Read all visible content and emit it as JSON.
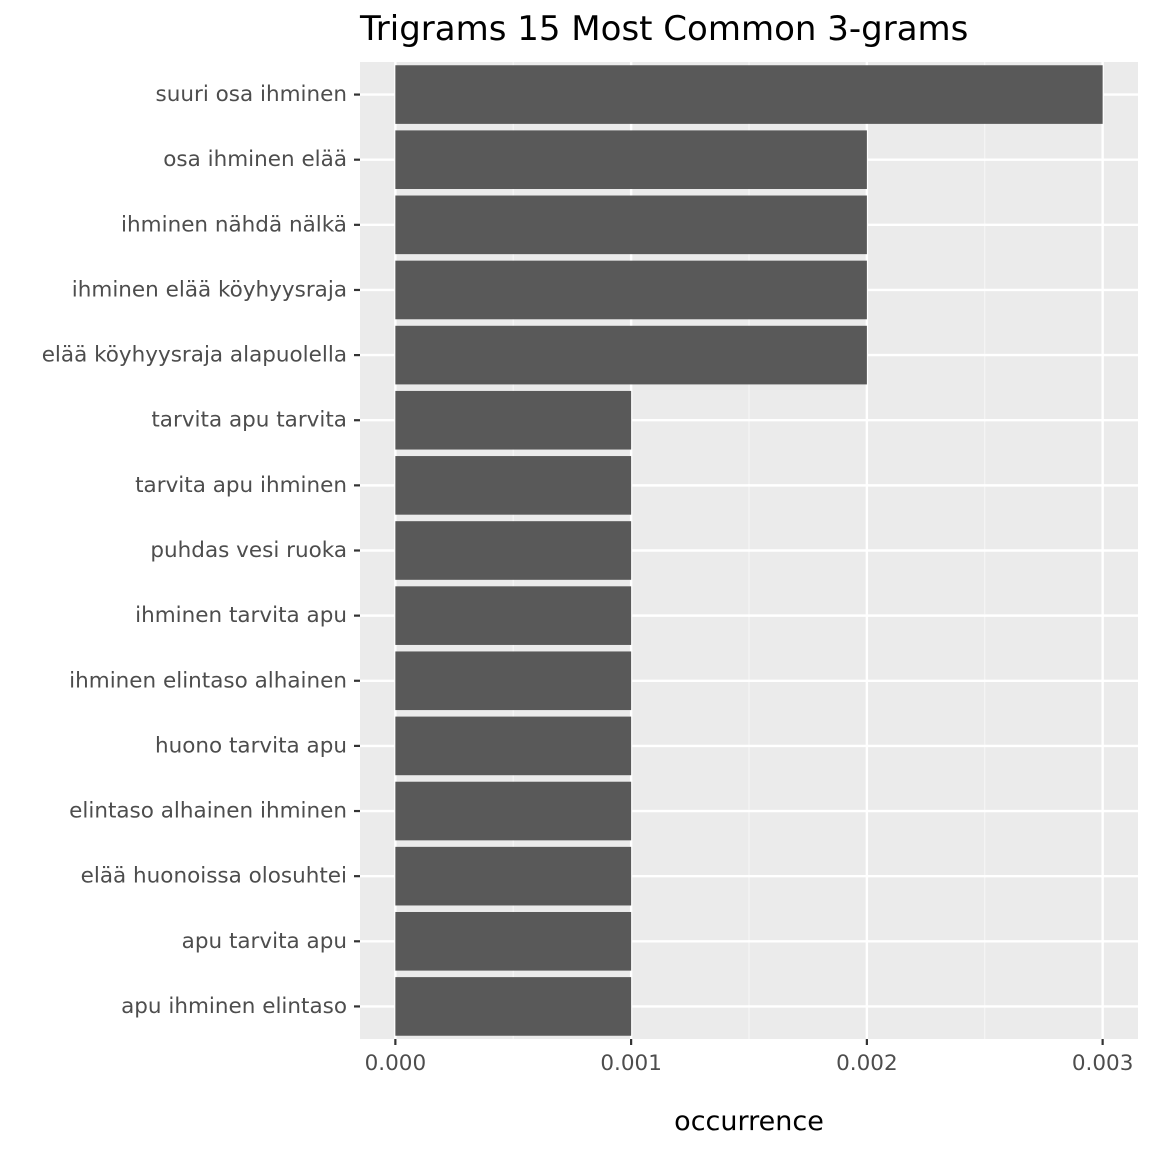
{
  "chart_data": {
    "type": "bar",
    "orientation": "horizontal",
    "title": "Trigrams 15 Most Common 3-grams",
    "xlabel": "occurrence",
    "ylabel": "",
    "categories": [
      "suuri osa ihminen",
      "osa ihminen elää",
      "ihminen nähdä nälkä",
      "ihminen elää köyhyysraja",
      "elää köyhyysraja alapuolella",
      "tarvita apu tarvita",
      "tarvita apu ihminen",
      "puhdas vesi ruoka",
      "ihminen tarvita apu",
      "ihminen elintaso alhainen",
      "huono tarvita apu",
      "elintaso alhainen ihminen",
      "elää huonoissa olosuhtei",
      "apu tarvita apu",
      "apu ihminen elintaso"
    ],
    "values": [
      0.003,
      0.002,
      0.002,
      0.002,
      0.002,
      0.001,
      0.001,
      0.001,
      0.001,
      0.001,
      0.001,
      0.001,
      0.001,
      0.001,
      0.001
    ],
    "xlim": [
      -0.00015,
      0.00315
    ],
    "xticks": [
      0,
      0.001,
      0.002,
      0.003
    ],
    "xtick_labels": [
      "0.000",
      "0.001",
      "0.002",
      "0.003"
    ],
    "grid": true,
    "legend": "none",
    "colors": {
      "bar": "#595959",
      "panel": "#ebebeb",
      "grid_major": "#ffffff",
      "grid_minor": "#f5f5f5",
      "tick_text": "#4d4d4d",
      "tick_mark": "#333333"
    }
  }
}
